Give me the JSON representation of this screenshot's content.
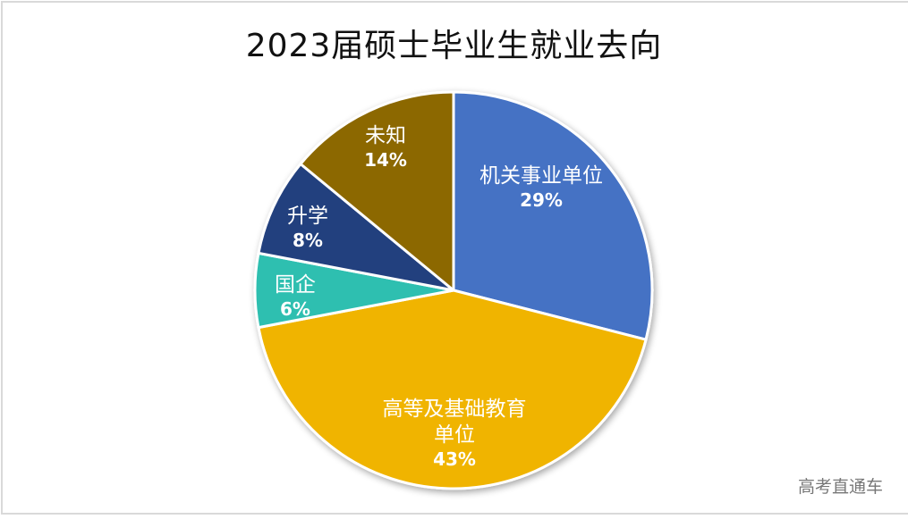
{
  "title": "2023届硕士毕业生就业去向",
  "watermark": "高考直通车",
  "chart_data": {
    "type": "pie",
    "title": "2023届硕士毕业生就业去向",
    "categories": [
      "机关事业单位",
      "高等及基础教育单位",
      "国企",
      "升学",
      "未知"
    ],
    "values": [
      29,
      43,
      6,
      8,
      14
    ],
    "unit": "%",
    "colors": [
      "#4472c4",
      "#f0b400",
      "#2fbfb0",
      "#233f7e",
      "#8c6800"
    ],
    "start_angle": "12 o'clock, clockwise",
    "legend": "none (data labels inside slices)"
  },
  "labels": [
    {
      "name": "机关事业单位",
      "pct": "29%"
    },
    {
      "name": "高等及基础教育单位",
      "pct": "43%"
    },
    {
      "name": "国企",
      "pct": "6%"
    },
    {
      "name": "升学",
      "pct": "8%"
    },
    {
      "name": "未知",
      "pct": "14%"
    }
  ]
}
